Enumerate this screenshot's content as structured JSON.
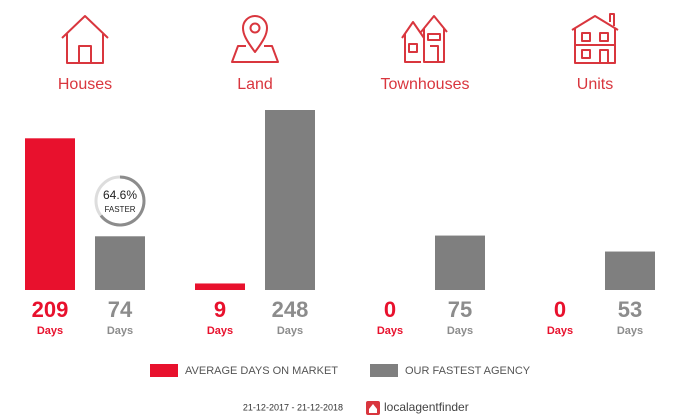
{
  "chart_data": {
    "type": "bar",
    "categories": [
      "Houses",
      "Land",
      "Townhouses",
      "Units"
    ],
    "series": [
      {
        "name": "AVERAGE DAYS ON MARKET",
        "color": "#e8112d",
        "values": [
          209,
          9,
          0,
          0
        ]
      },
      {
        "name": "OUR FASTEST AGENCY",
        "color": "#7f7f7f",
        "values": [
          74,
          248,
          75,
          53
        ]
      }
    ],
    "unit": "Days",
    "annotation": {
      "value": 64.6,
      "value_label": "64.6%",
      "text": "FASTER"
    },
    "footer": "21-12-2017 - 21-12-2018",
    "brand": "localagentfinder"
  }
}
